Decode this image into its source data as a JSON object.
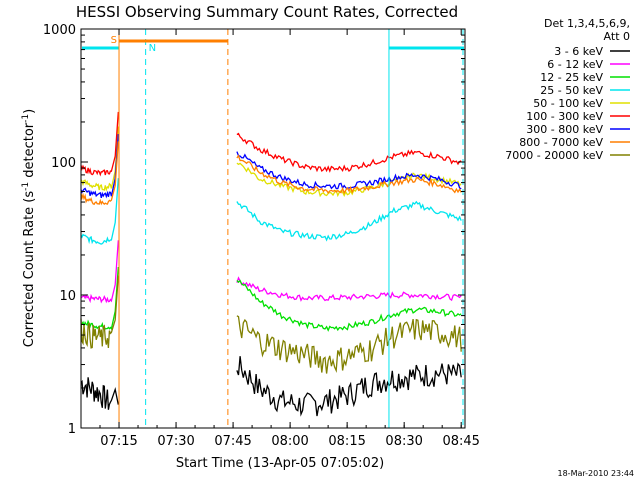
{
  "chart_data": {
    "type": "line",
    "title": "HESSI Observing Summary Count Rates, Corrected",
    "xlabel": "Start Time (13-Apr-05 07:05:02)",
    "ylabel_main": "Corrected Count Rate (s",
    "ylabel_sup1": "-1",
    "ylabel_mid": " detector",
    "ylabel_sup2": "-1",
    "ylabel_end": ")",
    "yscale": "log",
    "ylim": [
      1,
      1000
    ],
    "xlim": [
      "07:05",
      "08:46"
    ],
    "x_ticks": [
      "07:15",
      "07:30",
      "07:45",
      "08:00",
      "08:15",
      "08:30",
      "08:45"
    ],
    "y_ticks": [
      "1",
      "10",
      "100",
      "1000"
    ],
    "timestamp": "18-Mar-2010 23:44",
    "legend": {
      "header_line1": "Det 1,3,4,5,6,9,",
      "header_line2": "Att 0",
      "position": "right"
    },
    "annotations": {
      "saa_label": "S",
      "night_label": "N"
    },
    "colors": {
      "axis": "#000000",
      "saa": "#ff7f00",
      "night": "#00e5ee"
    },
    "series": [
      {
        "name": "3 - 6 keV",
        "color": "#000000",
        "pre": [
          2.2,
          2.0,
          1.8,
          1.5
        ],
        "post": [
          3.0,
          2.0,
          1.6,
          1.5,
          1.6,
          1.8,
          2.2,
          2.4,
          2.5,
          2.6,
          2.5
        ]
      },
      {
        "name": "6 - 12 keV",
        "color": "#ff00ff",
        "pre": [
          9.5,
          9.4,
          9.3,
          9.2
        ],
        "post": [
          13.0,
          11.0,
          10.0,
          9.5,
          9.5,
          9.6,
          9.8,
          10.0,
          10.0,
          9.8,
          9.5
        ]
      },
      {
        "name": "12 - 25 keV",
        "color": "#00e000",
        "pre": [
          6.2,
          6.0,
          5.8,
          5.8
        ],
        "post": [
          13.0,
          9.0,
          7.0,
          6.0,
          5.6,
          5.8,
          6.3,
          7.2,
          7.8,
          7.5,
          7.0
        ]
      },
      {
        "name": "25 - 50 keV",
        "color": "#00e5ee",
        "pre": [
          28,
          26,
          25,
          27
        ],
        "post": [
          50,
          36,
          30,
          28,
          27,
          29,
          34,
          43,
          48,
          42,
          37
        ]
      },
      {
        "name": "50 - 100 keV",
        "color": "#e0e000",
        "pre": [
          72,
          67,
          64,
          66
        ],
        "post": [
          100,
          75,
          66,
          60,
          58,
          59,
          64,
          72,
          80,
          74,
          68
        ]
      },
      {
        "name": "100 - 300 keV",
        "color": "#ff0000",
        "pre": [
          90,
          85,
          82,
          85
        ],
        "post": [
          160,
          125,
          105,
          92,
          88,
          90,
          98,
          110,
          118,
          110,
          98
        ]
      },
      {
        "name": "300 - 800 keV",
        "color": "#0000ff",
        "pre": [
          62,
          58,
          56,
          58
        ],
        "post": [
          118,
          90,
          76,
          68,
          66,
          66,
          70,
          76,
          80,
          74,
          66
        ]
      },
      {
        "name": "800 - 7000 keV",
        "color": "#ff7f00",
        "pre": [
          55,
          51,
          49,
          51
        ],
        "post": [
          110,
          84,
          70,
          63,
          61,
          61,
          65,
          70,
          74,
          68,
          60
        ]
      },
      {
        "name": "7000 - 20000 keV",
        "color": "#808000",
        "pre": [
          5.6,
          5.0,
          4.8,
          5.0
        ],
        "post": [
          6.0,
          4.6,
          4.0,
          3.6,
          3.2,
          3.5,
          4.0,
          5.0,
          5.6,
          5.3,
          4.8
        ]
      }
    ]
  }
}
